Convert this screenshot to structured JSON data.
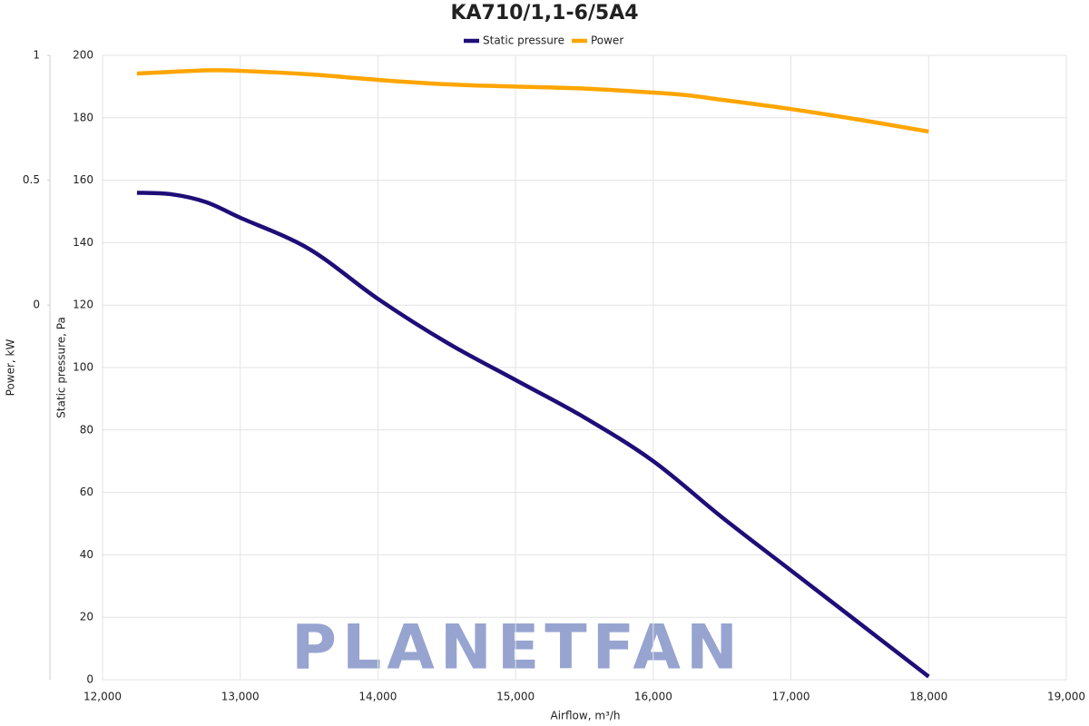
{
  "chart_data": {
    "type": "line",
    "title": "KA710/1,1-6/5A4",
    "xlabel": "Airflow, m³/h",
    "ylabel": "Static pressure, Pa",
    "y2label": "Power, kW",
    "watermark": "PLANETFAN",
    "xlim": [
      12000,
      19000
    ],
    "xticks": [
      {
        "value": 12000,
        "label": "12,000"
      },
      {
        "value": 13000,
        "label": "13,000"
      },
      {
        "value": 14000,
        "label": "14,000"
      },
      {
        "value": 15000,
        "label": "15,000"
      },
      {
        "value": 16000,
        "label": "16,000"
      },
      {
        "value": 17000,
        "label": "17,000"
      },
      {
        "value": 18000,
        "label": "18,000"
      },
      {
        "value": 19000,
        "label": "19,000"
      }
    ],
    "ylim": [
      0,
      200
    ],
    "yticks": [
      0,
      20,
      40,
      60,
      80,
      100,
      120,
      140,
      160,
      180,
      200
    ],
    "y2lim": [
      -1.5,
      1
    ],
    "y2ticks": [
      0,
      0.5,
      1
    ],
    "grid": true,
    "legend": "top",
    "series": [
      {
        "name": "Static pressure",
        "color": "#1f0d78",
        "x": [
          12250,
          12500,
          12750,
          13000,
          13500,
          14000,
          14500,
          15000,
          15500,
          16000,
          16500,
          17000,
          17500,
          18000
        ],
        "values": [
          156,
          155.5,
          153,
          148,
          138,
          122,
          108,
          96,
          84,
          70,
          52,
          35,
          18,
          1
        ]
      },
      {
        "name": "Power",
        "color": "#ffa500",
        "axis": "y2",
        "x": [
          12250,
          12750,
          13000,
          13500,
          14000,
          14500,
          15000,
          15500,
          16000,
          16250,
          16500,
          17000,
          17500,
          18000
        ],
        "values": [
          0.927,
          0.94,
          0.938,
          0.924,
          0.902,
          0.884,
          0.875,
          0.867,
          0.851,
          0.84,
          0.822,
          0.785,
          0.742,
          0.695
        ]
      }
    ]
  }
}
